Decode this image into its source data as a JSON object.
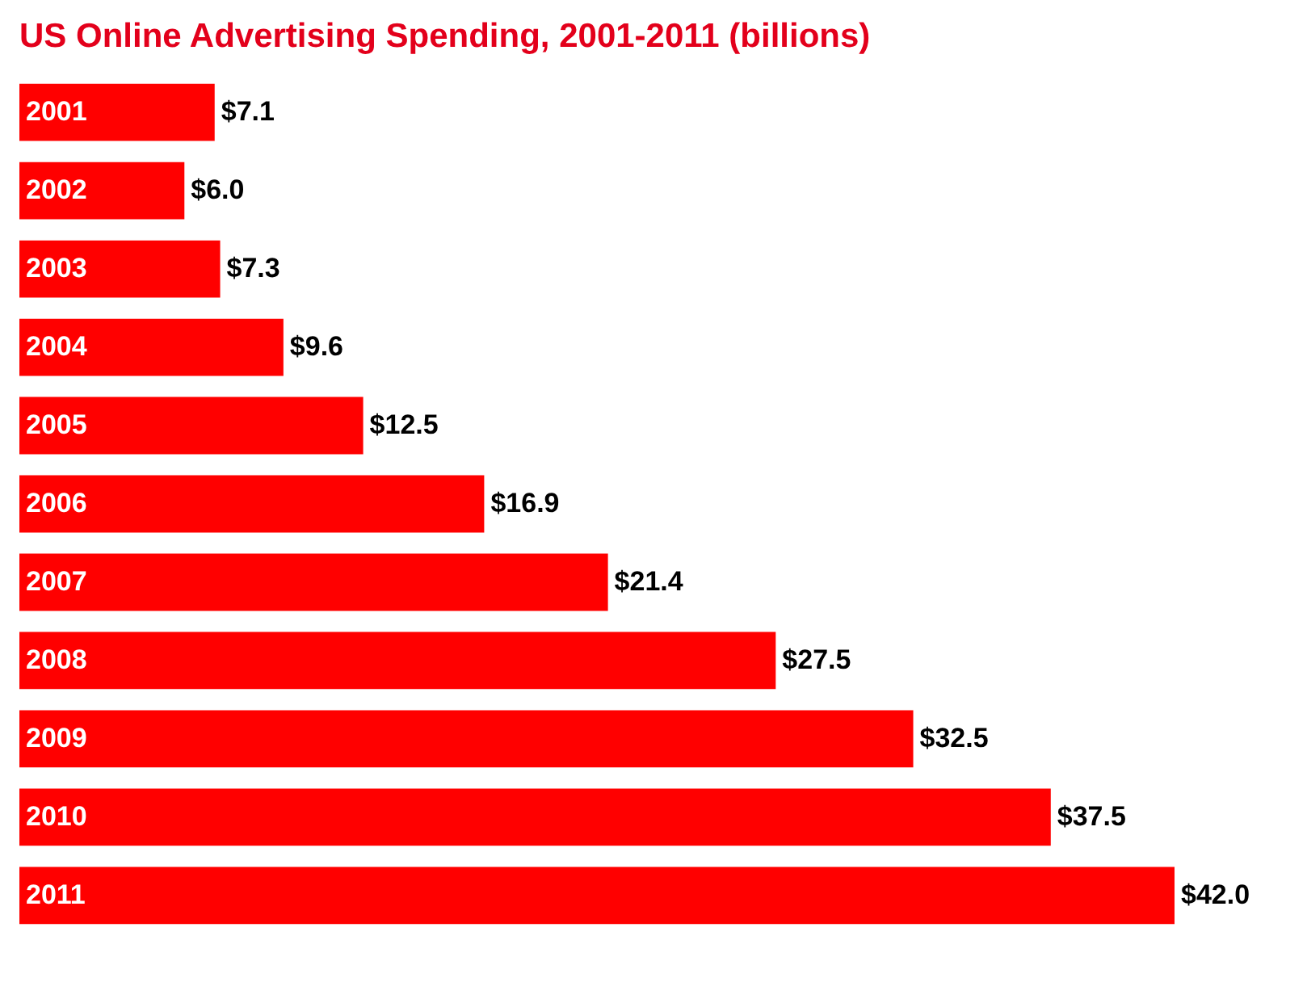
{
  "chart_data": {
    "type": "bar",
    "orientation": "horizontal",
    "title": "US Online Advertising Spending, 2001-2011 (billions)",
    "categories": [
      "2001",
      "2002",
      "2003",
      "2004",
      "2005",
      "2006",
      "2007",
      "2008",
      "2009",
      "2010",
      "2011"
    ],
    "values": [
      7.1,
      6.0,
      7.3,
      9.6,
      12.5,
      16.9,
      21.4,
      27.5,
      32.5,
      37.5,
      42.0
    ],
    "value_labels": [
      "$7.1",
      "$6.0",
      "$7.3",
      "$9.6",
      "$12.5",
      "$16.9",
      "$21.4",
      "$27.5",
      "$32.5",
      "$37.5",
      "$42.0"
    ],
    "color": "#ff0000",
    "grid": false
  }
}
